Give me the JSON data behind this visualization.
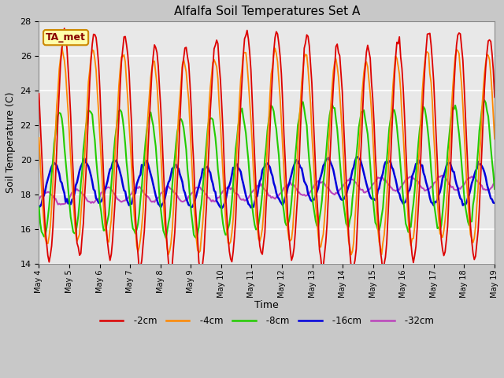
{
  "title": "Alfalfa Soil Temperatures Set A",
  "xlabel": "Time",
  "ylabel": "Soil Temperature (C)",
  "ylim": [
    14,
    28
  ],
  "n_days": 15,
  "x_tick_labels": [
    "May 4",
    "May 5",
    "May 6",
    "May 7",
    "May 8",
    "May 9",
    "May 10",
    "May 11",
    "May 12",
    "May 13",
    "May 14",
    "May 15",
    "May 16",
    "May 17",
    "May 18",
    "May 19"
  ],
  "annotation_text": "TA_met",
  "annotation_bg": "#ffffaa",
  "annotation_border": "#cc8800",
  "annotation_text_color": "#880000",
  "colors": {
    "-2cm": "#dd0000",
    "-4cm": "#ff8800",
    "-8cm": "#22cc00",
    "-16cm": "#0000dd",
    "-32cm": "#bb44bb"
  },
  "fig_bg": "#c8c8c8",
  "plot_bg": "#e8e8e8",
  "grid_color": "#ffffff",
  "linewidths": {
    "-2cm": 1.3,
    "-4cm": 1.3,
    "-8cm": 1.5,
    "-16cm": 1.8,
    "-32cm": 1.5
  }
}
